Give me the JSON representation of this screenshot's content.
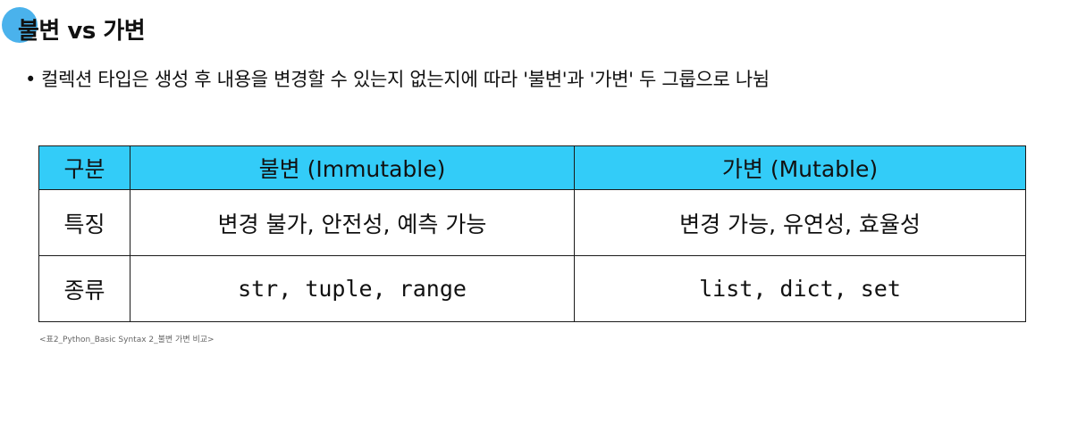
{
  "slide": {
    "title": "불변 vs 가변",
    "bullet": "컬렉션 타입은 생성 후 내용을 변경할 수 있는지 없는지에 따라 '불변'과 '가변' 두 그룹으로 나뉨",
    "bullet_symbol": "•",
    "accent_color": "#4ab2ec"
  },
  "table": {
    "header_color": "#33ccf8",
    "headers": [
      "구분",
      "불변 (Immutable)",
      "가변 (Mutable)"
    ],
    "rows": [
      [
        "특징",
        "변경 불가, 안전성, 예측 가능",
        "변경 가능, 유연성, 효율성"
      ],
      [
        "종류",
        "str, tuple, range",
        "list, dict, set"
      ]
    ]
  },
  "caption": "<표2_Python_Basic Syntax 2_불변 가변 비교>"
}
